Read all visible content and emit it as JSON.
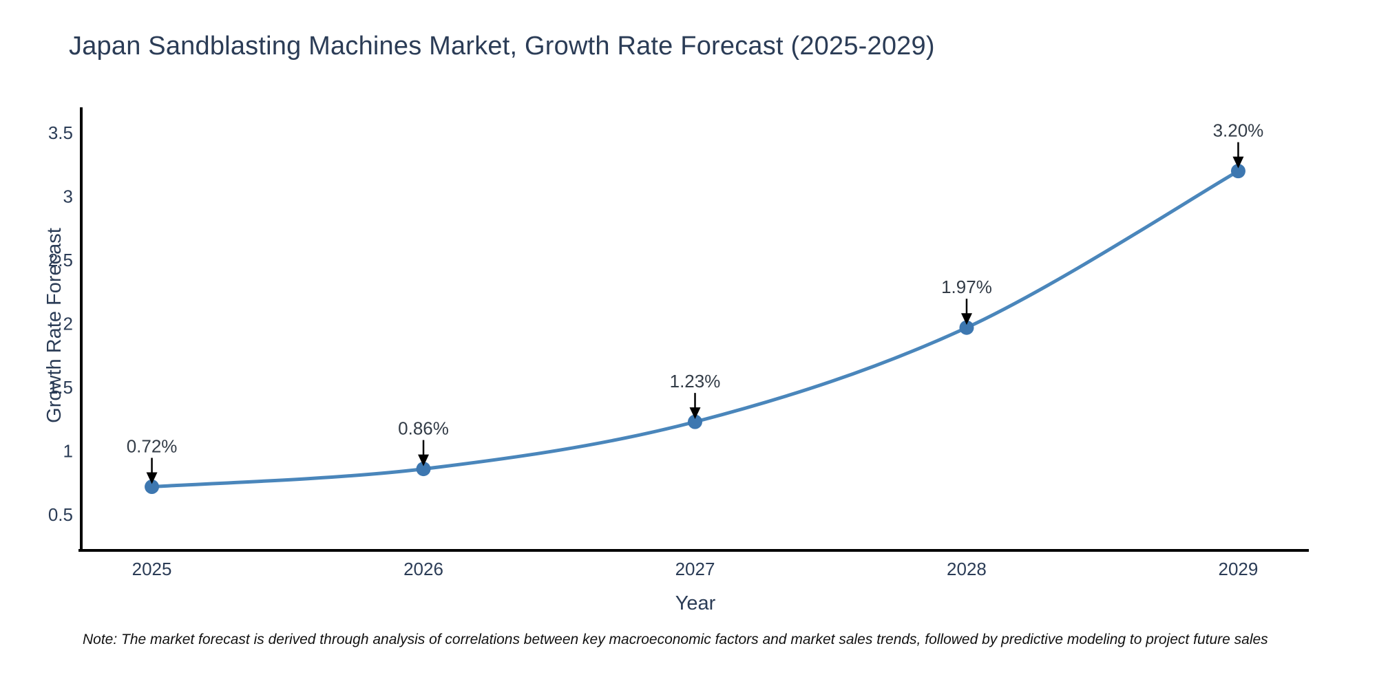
{
  "note": "Note: The market forecast is derived through analysis of correlations between key macroeconomic factors and market sales trends, followed by predictive modeling to project future sales",
  "chart_data": {
    "type": "line",
    "title": "Japan Sandblasting Machines Market, Growth Rate Forecast (2025-2029)",
    "x": [
      2025,
      2026,
      2027,
      2028,
      2029
    ],
    "categories": [
      "2025",
      "2026",
      "2027",
      "2028",
      "2029"
    ],
    "series": [
      {
        "name": "Growth Rate Forecast",
        "values": [
          0.72,
          0.86,
          1.23,
          1.97,
          3.2
        ]
      }
    ],
    "point_labels": [
      "0.72%",
      "0.86%",
      "1.23%",
      "1.97%",
      "3.20%"
    ],
    "xlabel": "Year",
    "ylabel": "Growth Rate Forecast",
    "y_ticks": [
      3.5,
      3,
      2.5,
      2,
      1.5,
      1,
      0.5
    ],
    "ylim": [
      0.22,
      3.69
    ],
    "xlim": [
      2024.74,
      2029.26
    ],
    "grid": false,
    "legend": "none",
    "colors": {
      "line": "#4a86bb",
      "marker": "#3d77b0",
      "axis": "#000000",
      "text": "#2b3c56",
      "annotation_text": "#333c47",
      "arrow": "#000000",
      "background": "#ffffff"
    }
  }
}
